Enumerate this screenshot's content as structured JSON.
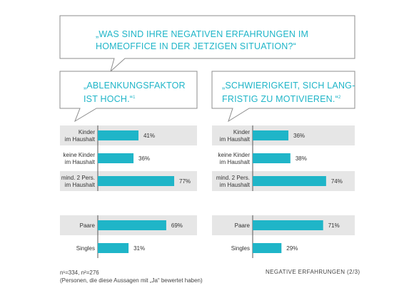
{
  "header_question": {
    "line1": "„WAS SIND IHRE NEGATIVEN ERFAHRUNGEN IM",
    "line2": "HOMEOFFICE IN DER JETZIGEN SITUATION?“"
  },
  "colors": {
    "accent": "#1fb5c8",
    "band": "#e6e6e6",
    "text": "#333333"
  },
  "chart_data": [
    {
      "type": "bar",
      "orientation": "horizontal",
      "title_line1": "„ABLENKUNGSFAKTOR",
      "title_line2": "IST HOCH.“",
      "footnote_mark": "1",
      "categories": [
        [
          "Kinder",
          "im Haushalt"
        ],
        [
          "keine Kinder",
          "im Haushalt"
        ],
        [
          "mind. 2 Pers.",
          "im Haushalt"
        ],
        [
          "Paare"
        ],
        [
          "Singles"
        ]
      ],
      "values": [
        41,
        36,
        77,
        69,
        31
      ],
      "value_labels": [
        "41%",
        "36%",
        "77%",
        "69%",
        "31%"
      ],
      "unit": "%",
      "xlim": [
        0,
        100
      ]
    },
    {
      "type": "bar",
      "orientation": "horizontal",
      "title_line1": "„SCHWIERIGKEIT, SICH LANG-",
      "title_line2": "FRISTIG ZU MOTIVIEREN.“",
      "footnote_mark": "2",
      "categories": [
        [
          "Kinder",
          "im Haushalt"
        ],
        [
          "keine Kinder",
          "im Haushalt"
        ],
        [
          "mind. 2 Pers.",
          "im Haushalt"
        ],
        [
          "Paare"
        ],
        [
          "Singles"
        ]
      ],
      "values": [
        36,
        38,
        74,
        71,
        29
      ],
      "value_labels": [
        "36%",
        "38%",
        "74%",
        "71%",
        "29%"
      ],
      "unit": "%",
      "xlim": [
        0,
        100
      ]
    }
  ],
  "footer": {
    "sample": "n¹=334,  n²=276",
    "note": "(Personen, die diese Aussagen mit „Ja“ bewertet haben)",
    "page_label": "NEGATIVE ERFAHRUNGEN  (2/3)"
  }
}
